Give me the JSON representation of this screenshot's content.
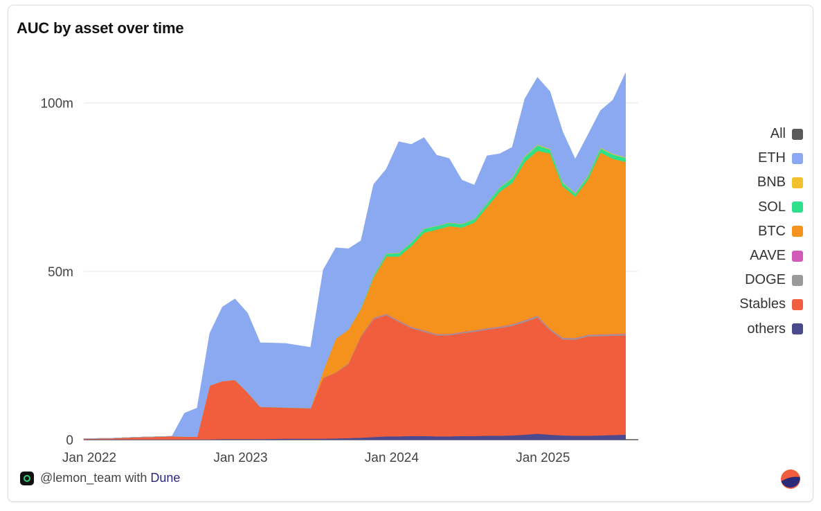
{
  "title": "AUC by asset over time",
  "footer": {
    "handle": "@lemon_team with",
    "brand": "Dune",
    "brand_icon": "lemon-logo-icon"
  },
  "legend": [
    {
      "label": "All",
      "color": "#5a5a5a"
    },
    {
      "label": "ETH",
      "color": "#8aa9f0"
    },
    {
      "label": "BNB",
      "color": "#f3c02e"
    },
    {
      "label": "SOL",
      "color": "#2fe08a"
    },
    {
      "label": "BTC",
      "color": "#f5921e"
    },
    {
      "label": "AAVE",
      "color": "#d25bb8"
    },
    {
      "label": "DOGE",
      "color": "#9a9a9a"
    },
    {
      "label": "Stables",
      "color": "#f15e3d"
    },
    {
      "label": "others",
      "color": "#4c4a8f"
    }
  ],
  "chart_data": {
    "type": "area",
    "stacked": true,
    "title": "AUC by asset over time",
    "xlabel": "",
    "ylabel": "",
    "x_ticks": [
      "Jan 2022",
      "Jan 2023",
      "Jan 2024",
      "Jan 2025"
    ],
    "y_ticks": [
      "0",
      "50m",
      "100m"
    ],
    "ylim": [
      0,
      110
    ],
    "y_unit": "m",
    "grid": true,
    "legend_position": "right",
    "x": [
      "2022-01",
      "2022-03",
      "2022-05",
      "2022-07",
      "2022-08",
      "2022-09",
      "2022-10",
      "2022-11",
      "2022-12",
      "2023-01",
      "2023-02",
      "2023-03",
      "2023-05",
      "2023-07",
      "2023-08",
      "2023-09",
      "2023-10",
      "2023-11",
      "2023-12",
      "2024-01",
      "2024-02",
      "2024-03",
      "2024-04",
      "2024-05",
      "2024-06",
      "2024-07",
      "2024-08",
      "2024-09",
      "2024-10",
      "2024-11",
      "2024-12",
      "2025-01",
      "2025-02",
      "2025-03",
      "2025-04",
      "2025-05",
      "2025-06",
      "2025-07",
      "2025-08"
    ],
    "series": [
      {
        "name": "others",
        "color": "#4c4a8f",
        "values": [
          0.1,
          0.1,
          0.1,
          0.1,
          0.1,
          0.1,
          0.1,
          0.1,
          0.2,
          0.2,
          0.2,
          0.2,
          0.3,
          0.3,
          0.3,
          0.4,
          0.5,
          0.6,
          0.8,
          1.0,
          1.0,
          1.1,
          1.1,
          1.0,
          1.0,
          1.1,
          1.1,
          1.2,
          1.2,
          1.3,
          1.5,
          1.8,
          1.5,
          1.3,
          1.2,
          1.2,
          1.3,
          1.4,
          1.5
        ]
      },
      {
        "name": "Stables",
        "color": "#f15e3d",
        "values": [
          0.2,
          0.3,
          0.6,
          0.8,
          0.9,
          0.8,
          0.8,
          16.0,
          17.2,
          17.5,
          13.8,
          9.5,
          9.2,
          9.0,
          18.0,
          19.5,
          22.0,
          30.0,
          35.0,
          36.0,
          34.0,
          32.0,
          31.0,
          30.0,
          30.0,
          30.5,
          31.0,
          31.5,
          32.0,
          32.5,
          33.5,
          34.5,
          31.0,
          28.5,
          28.5,
          29.5,
          29.5,
          29.5,
          29.5
        ]
      },
      {
        "name": "DOGE",
        "color": "#9a9a9a",
        "values": [
          0.0,
          0.0,
          0.0,
          0.0,
          0.0,
          0.0,
          0.0,
          0.0,
          0.0,
          0.1,
          0.1,
          0.1,
          0.1,
          0.1,
          0.1,
          0.1,
          0.2,
          0.2,
          0.3,
          0.3,
          0.3,
          0.3,
          0.3,
          0.3,
          0.3,
          0.3,
          0.3,
          0.3,
          0.3,
          0.4,
          0.4,
          0.4,
          0.4,
          0.4,
          0.4,
          0.4,
          0.4,
          0.4,
          0.4
        ]
      },
      {
        "name": "AAVE",
        "color": "#d25bb8",
        "values": [
          0.0,
          0.0,
          0.0,
          0.0,
          0.0,
          0.0,
          0.0,
          0.0,
          0.0,
          0.0,
          0.0,
          0.0,
          0.0,
          0.0,
          0.0,
          0.0,
          0.0,
          0.1,
          0.1,
          0.1,
          0.1,
          0.1,
          0.1,
          0.1,
          0.1,
          0.1,
          0.1,
          0.1,
          0.1,
          0.1,
          0.1,
          0.1,
          0.1,
          0.1,
          0.1,
          0.1,
          0.1,
          0.1,
          0.1
        ]
      },
      {
        "name": "BTC",
        "color": "#f5921e",
        "values": [
          0.0,
          0.0,
          0.0,
          0.0,
          0.0,
          0.0,
          0.0,
          0.0,
          0.0,
          0.0,
          0.0,
          0.0,
          0.0,
          0.0,
          2.0,
          10.0,
          10.0,
          8.0,
          12.0,
          17.0,
          19.0,
          24.0,
          29.0,
          31.0,
          32.0,
          31.0,
          32.0,
          36.0,
          40.0,
          42.0,
          47.0,
          49.0,
          52.0,
          45.0,
          42.0,
          46.0,
          54.0,
          52.0,
          51.0
        ]
      },
      {
        "name": "SOL",
        "color": "#2fe08a",
        "values": [
          0.0,
          0.0,
          0.0,
          0.0,
          0.0,
          0.0,
          0.0,
          0.0,
          0.0,
          0.0,
          0.0,
          0.0,
          0.0,
          0.0,
          0.0,
          0.0,
          0.0,
          0.2,
          0.5,
          0.8,
          1.0,
          1.1,
          1.1,
          1.0,
          1.0,
          1.0,
          1.0,
          1.1,
          1.2,
          1.3,
          1.5,
          1.6,
          1.2,
          1.0,
          0.9,
          1.0,
          1.2,
          1.3,
          1.2
        ]
      },
      {
        "name": "BNB",
        "color": "#f3c02e",
        "values": [
          0.0,
          0.0,
          0.0,
          0.0,
          0.0,
          0.0,
          0.0,
          0.0,
          0.0,
          0.0,
          0.0,
          0.0,
          0.0,
          0.0,
          0.0,
          0.0,
          0.0,
          0.0,
          0.1,
          0.1,
          0.1,
          0.1,
          0.1,
          0.1,
          0.1,
          0.1,
          0.1,
          0.1,
          0.1,
          0.2,
          0.2,
          0.2,
          0.2,
          0.2,
          0.2,
          0.2,
          0.2,
          0.2,
          0.2
        ]
      },
      {
        "name": "ETH",
        "color": "#8aa9f0",
        "values": [
          0.0,
          0.0,
          0.0,
          0.0,
          0.0,
          7.0,
          8.5,
          15.5,
          22.0,
          24.0,
          23.5,
          19.0,
          19.0,
          18.0,
          30.0,
          27.0,
          24.0,
          20.0,
          27.0,
          25.0,
          33.0,
          29.0,
          27.0,
          21.0,
          19.0,
          13.0,
          10.0,
          14.0,
          10.0,
          9.0,
          17.0,
          20.0,
          17.0,
          15.0,
          10.0,
          12.0,
          11.0,
          16.0,
          25.0
        ]
      }
    ]
  }
}
